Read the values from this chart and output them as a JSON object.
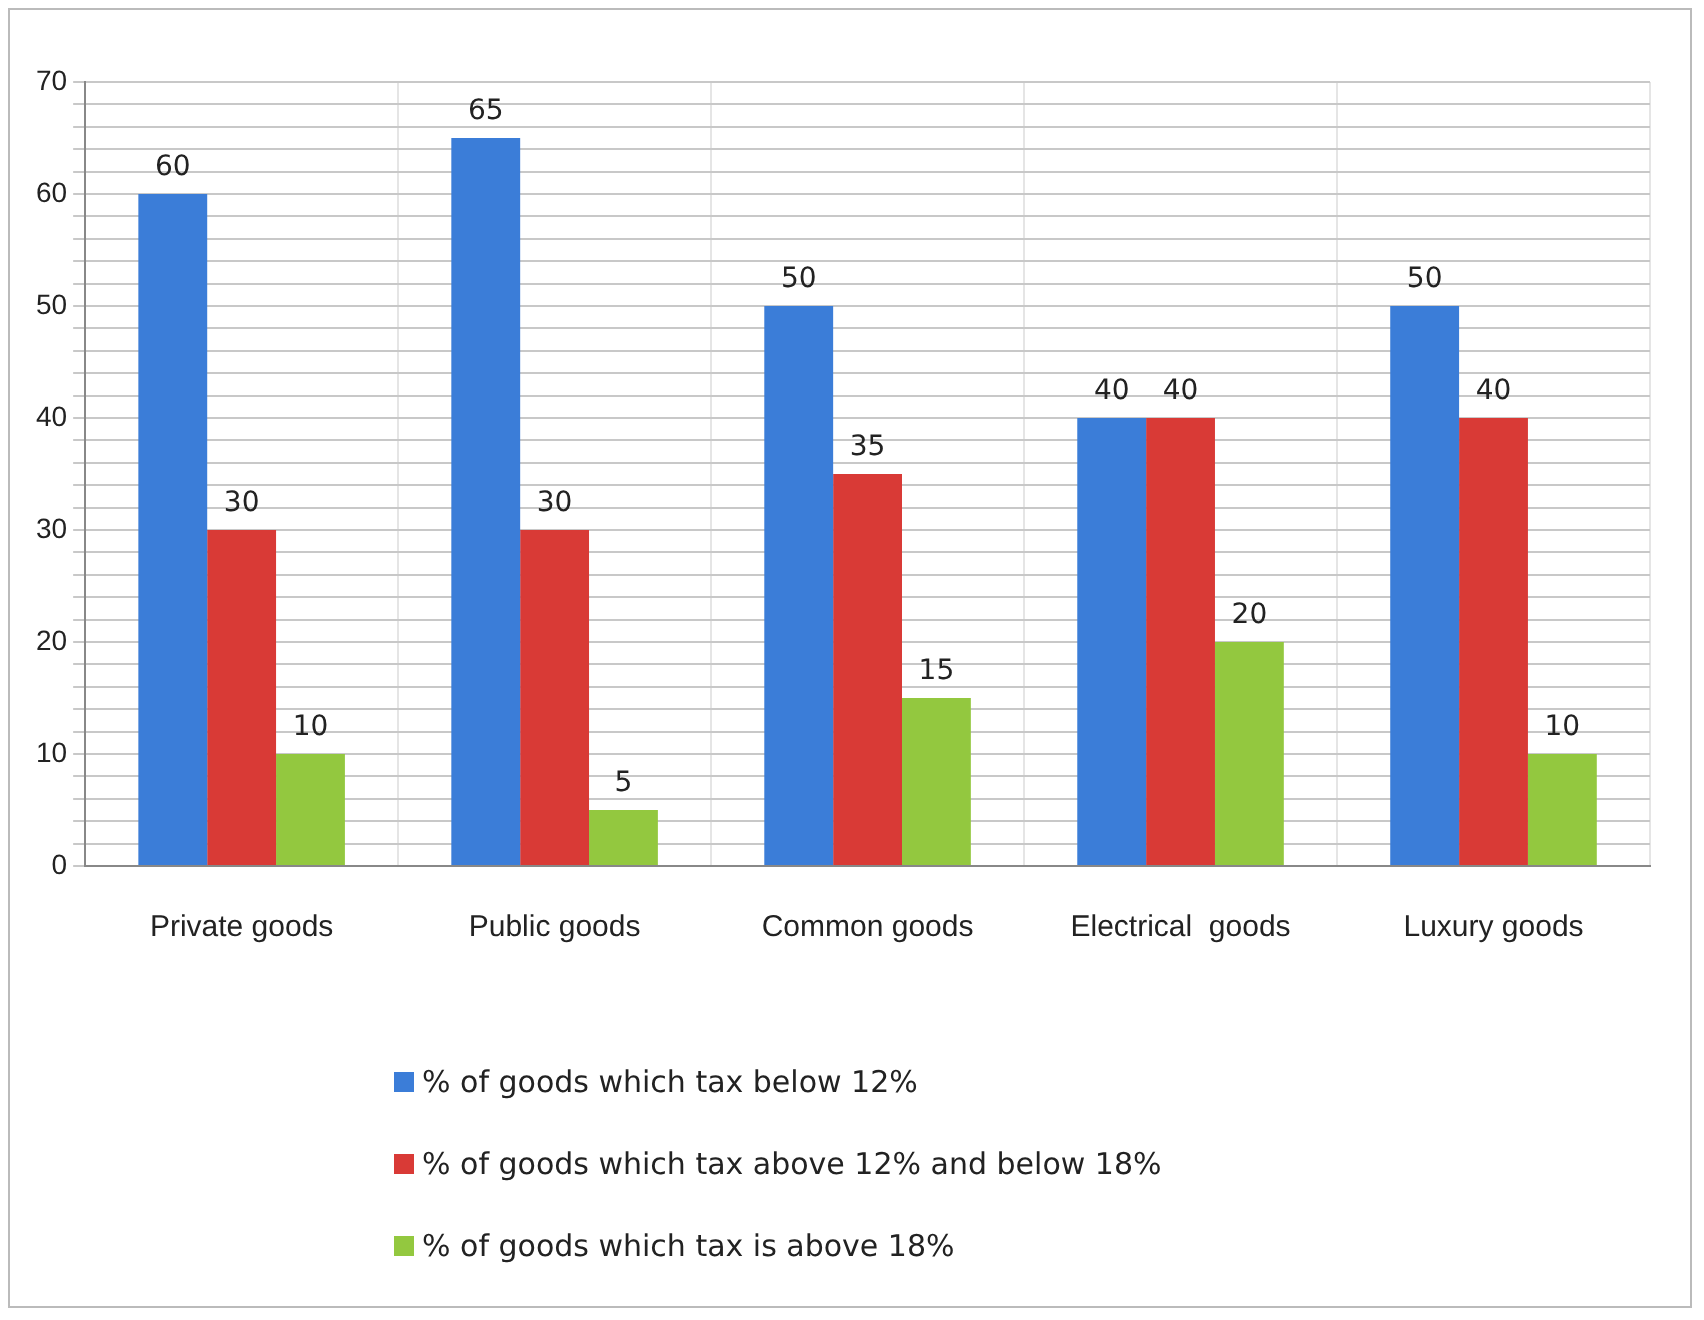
{
  "chart_data": {
    "type": "bar",
    "categories": [
      "Private goods",
      "Public goods",
      "Common goods",
      "Electrical  goods",
      "Luxury goods"
    ],
    "series": [
      {
        "name": "% of goods which tax below 12%",
        "color": "#3b7dd8",
        "values": [
          60,
          65,
          50,
          40,
          50
        ]
      },
      {
        "name": "% of goods which tax above 12% and below 18%",
        "color": "#d93a36",
        "values": [
          30,
          30,
          35,
          40,
          40
        ]
      },
      {
        "name": "% of goods which tax is above 18%",
        "color": "#93c83f",
        "values": [
          10,
          5,
          15,
          20,
          10
        ]
      }
    ],
    "ylim": [
      0,
      70
    ],
    "yticks": [
      0,
      {
        "value": 2,
        "label": null
      },
      {
        "value": 4,
        "label": null
      },
      {
        "value": 6,
        "label": null
      },
      {
        "value": 8,
        "label": null
      },
      10,
      {
        "value": 12,
        "label": null
      },
      {
        "value": 14,
        "label": null
      },
      {
        "value": 16,
        "label": null
      },
      {
        "value": 18,
        "label": null
      },
      20,
      {
        "value": 22,
        "label": null
      },
      {
        "value": 24,
        "label": null
      },
      {
        "value": 26,
        "label": null
      },
      {
        "value": 28,
        "label": null
      },
      30,
      {
        "value": 32,
        "label": null
      },
      {
        "value": 34,
        "label": null
      },
      {
        "value": 36,
        "label": null
      },
      {
        "value": 38,
        "label": null
      },
      40,
      {
        "value": 42,
        "label": null
      },
      {
        "value": 44,
        "label": null
      },
      {
        "value": 46,
        "label": null
      },
      {
        "value": 48,
        "label": null
      },
      50,
      {
        "value": 52,
        "label": null
      },
      {
        "value": 54,
        "label": null
      },
      {
        "value": 56,
        "label": null
      },
      {
        "value": 58,
        "label": null
      },
      60,
      {
        "value": 62,
        "label": null
      },
      {
        "value": 64,
        "label": null
      },
      {
        "value": 66,
        "label": null
      },
      {
        "value": 68,
        "label": null
      },
      70
    ],
    "grid": true,
    "legend": "bottom",
    "data_labels": true
  }
}
